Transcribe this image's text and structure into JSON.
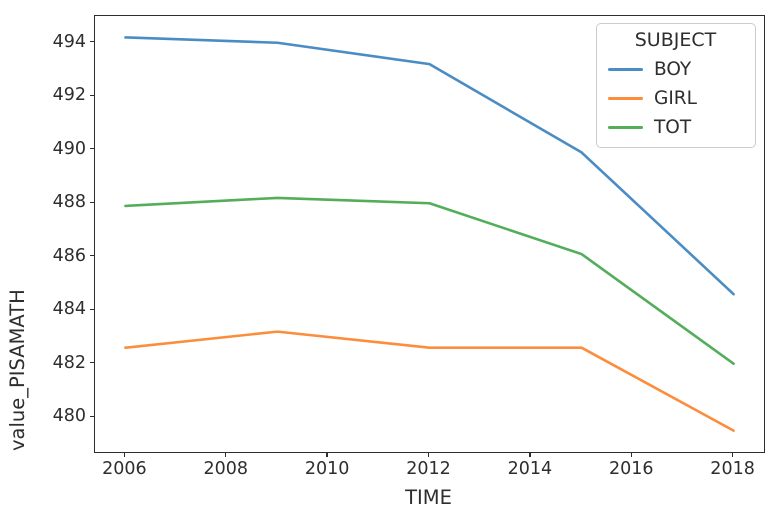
{
  "chart_data": {
    "type": "line",
    "title": "",
    "xlabel": "TIME",
    "ylabel": "value_PISAMATH",
    "x": [
      2006,
      2009,
      2012,
      2015,
      2018
    ],
    "series": [
      {
        "name": "BOY",
        "color": "#4a8cc4",
        "values": [
          494.2,
          494.0,
          493.2,
          489.9,
          484.6
        ]
      },
      {
        "name": "GIRL",
        "color": "#fb8d3c",
        "values": [
          482.6,
          483.2,
          482.6,
          482.6,
          479.5
        ]
      },
      {
        "name": "TOT",
        "color": "#54ad5a",
        "values": [
          487.9,
          488.2,
          488.0,
          486.1,
          482.0
        ]
      }
    ],
    "legend": {
      "title": "SUBJECT",
      "position": "upper right"
    },
    "xlim": [
      2005.4,
      2018.6
    ],
    "ylim": [
      478.7,
      495.0
    ],
    "xticks": [
      2006,
      2008,
      2010,
      2012,
      2014,
      2016,
      2018
    ],
    "yticks": [
      480,
      482,
      484,
      486,
      488,
      490,
      492,
      494
    ],
    "grid": false,
    "line_width": 2.6,
    "axis_color": "#2d2d2d",
    "text_color": "#2e2e2e"
  }
}
